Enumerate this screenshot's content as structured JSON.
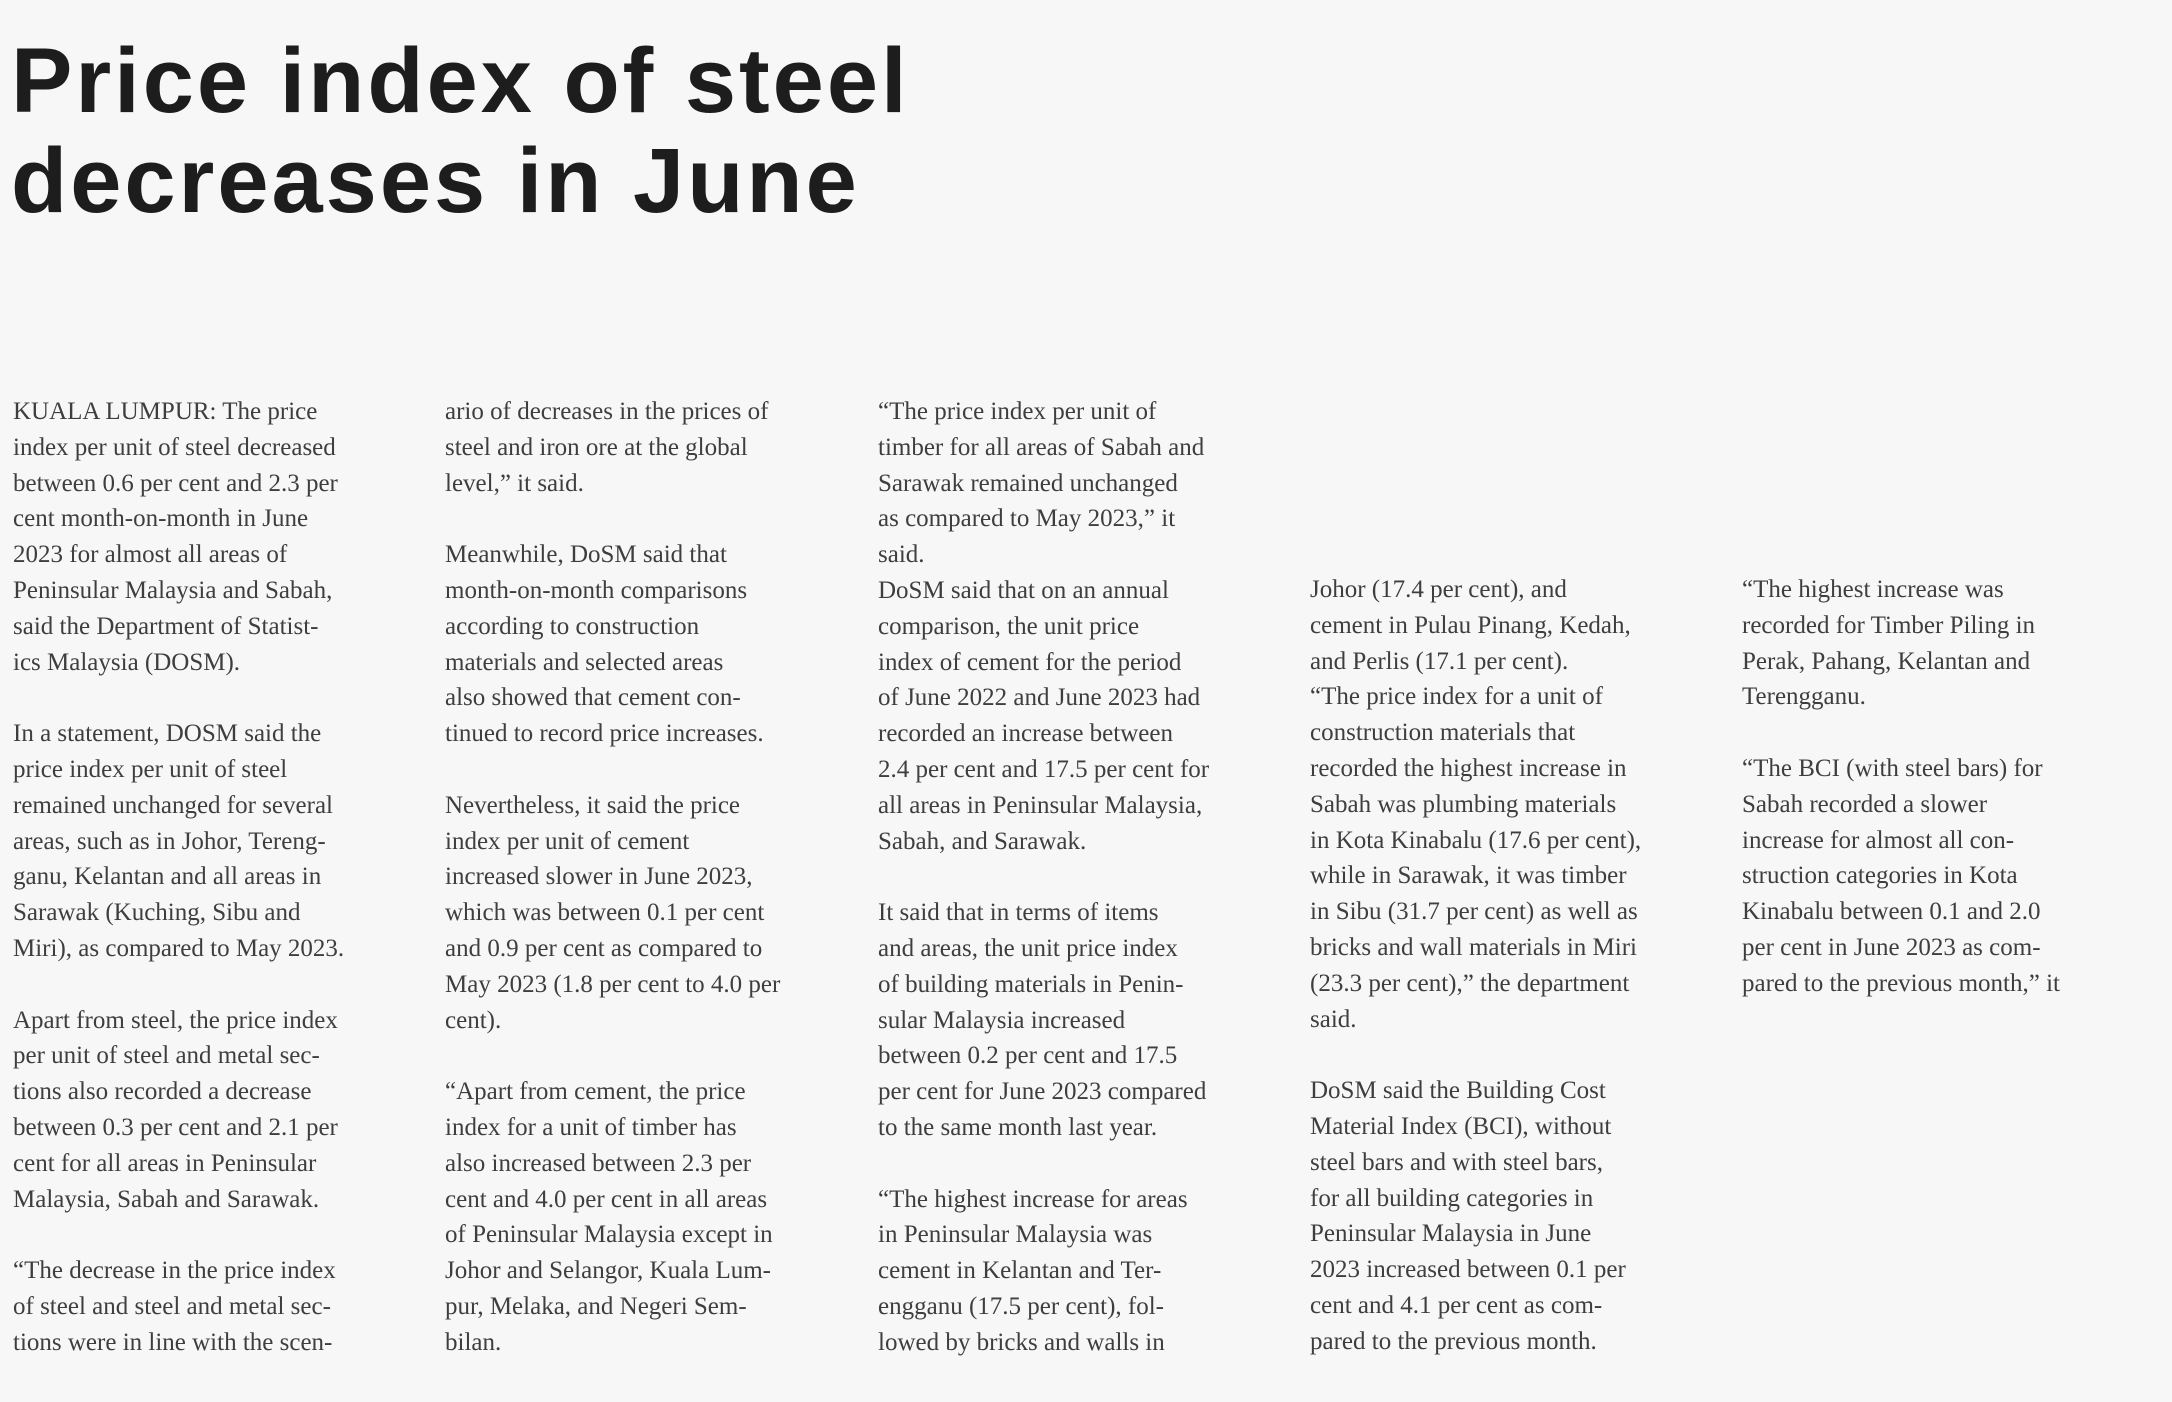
{
  "article": {
    "headline": "Price index of steel\ndecreases in June",
    "colors": {
      "background": "#f7f7f7",
      "headline_text": "#1d1d1d",
      "body_text": "#3e3e3e"
    },
    "columns": [
      {
        "paragraphs": [
          {
            "text": "KUALA LUMPUR: The price\nindex per unit of steel decreased\nbetween 0.6 per cent and 2.3 per\ncent month-on-month in June\n2023 for almost all areas of\nPeninsular Malaysia and Sabah,\nsaid the Department of Statist-\nics Malaysia (DOSM)."
          },
          {
            "text": "In a statement, DOSM said the\nprice index per unit of steel\nremained unchanged for several\nareas, such as in Johor, Tereng-\nganu, Kelantan and all areas in\nSarawak (Kuching, Sibu and\nMiri), as compared to May 2023."
          },
          {
            "text": "Apart from steel, the price index\nper unit of steel and metal sec-\ntions also recorded a decrease\nbetween 0.3 per cent and 2.1 per\ncent for all areas in Peninsular\nMalaysia, Sabah and Sarawak."
          },
          {
            "text": "“The decrease in the price index\nof steel and steel and metal sec-\ntions were in line with the scen-"
          }
        ]
      },
      {
        "paragraphs": [
          {
            "text": "ario of decreases in the prices of\nsteel and iron ore at the global\nlevel,” it said."
          },
          {
            "text": "Meanwhile, DoSM said that\nmonth-on-month comparisons\naccording to construction\nmaterials and selected areas\nalso showed that cement con-\ntinued to record price increases."
          },
          {
            "text": "Nevertheless, it said the price\nindex per unit of cement\nincreased slower in June 2023,\nwhich was between 0.1 per cent\nand 0.9 per cent as compared to\nMay 2023 (1.8 per cent to 4.0 per\ncent)."
          },
          {
            "text": "“Apart from cement, the price\nindex for a unit of timber has\nalso increased between 2.3 per\ncent and 4.0 per cent in all areas\nof Peninsular Malaysia except in\nJohor and Selangor, Kuala Lum-\npur, Melaka, and Negeri Sem-\nbilan."
          }
        ]
      },
      {
        "paragraphs": [
          {
            "text": "“The price index per unit of\ntimber for all areas of Sabah and\nSarawak remained unchanged\nas compared to May 2023,” it\nsaid."
          },
          {
            "text": "DoSM said that on an annual\ncomparison, the unit price\nindex of cement for the period\nof June 2022 and June 2023 had\nrecorded an increase between\n2.4 per cent and 17.5 per cent for\nall areas in Peninsular Malaysia,\nSabah, and Sarawak."
          },
          {
            "text": "It said that in terms of items\nand areas, the unit price index\nof building materials in Penin-\nsular Malaysia increased\nbetween 0.2 per cent and 17.5\nper cent for June 2023 compared\nto the same month last year."
          },
          {
            "text": "“The highest increase for areas\nin Peninsular Malaysia was\ncement in Kelantan and Ter-\nengganu (17.5 per cent), fol-\nlowed by bricks and walls in"
          }
        ]
      },
      {
        "paragraphs": [
          {
            "text": "Johor (17.4 per cent), and\ncement in Pulau Pinang, Kedah,\nand Perlis (17.1 per cent)."
          },
          {
            "text": "“The price index for a unit of\nconstruction materials that\nrecorded the highest increase in\nSabah was plumbing materials\nin Kota Kinabalu (17.6 per cent),\nwhile in Sarawak, it was timber\nin Sibu (31.7 per cent) as well as\nbricks and wall materials in Miri\n(23.3 per cent),” the department\nsaid."
          },
          {
            "text": "DoSM said the Building Cost\nMaterial Index (BCI), without\nsteel bars and with steel bars,\nfor all building categories in\nPeninsular Malaysia in June\n2023 increased between 0.1 per\ncent and 4.1 per cent as com-\npared to the previous month."
          }
        ]
      },
      {
        "paragraphs": [
          {
            "text": "“The highest increase was\nrecorded for Timber Piling in\nPerak, Pahang, Kelantan and\nTerengganu."
          },
          {
            "text": "“The BCI (with steel bars) for\nSabah recorded a slower\nincrease for almost all con-\nstruction categories in Kota\nKinabalu between 0.1 and 2.0\nper cent in June 2023 as com-\npared to the previous month,” it"
          }
        ]
      }
    ]
  }
}
